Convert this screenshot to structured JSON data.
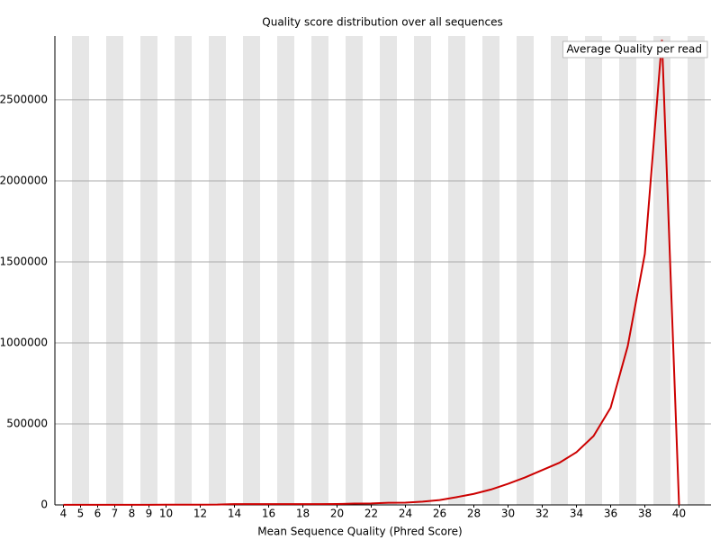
{
  "chart_data": {
    "type": "line",
    "title": "Quality score distribution over all sequences",
    "x_label": "Mean Sequence Quality (Phred Score)",
    "x": [
      4,
      5,
      6,
      7,
      8,
      9,
      10,
      11,
      12,
      13,
      14,
      15,
      16,
      17,
      18,
      19,
      20,
      21,
      22,
      23,
      24,
      25,
      26,
      27,
      28,
      29,
      30,
      31,
      32,
      33,
      34,
      35,
      36,
      37,
      38,
      39,
      40
    ],
    "series": [
      {
        "name": "Average Quality per read",
        "color": "#cc0000",
        "values": [
          500,
          600,
          700,
          800,
          900,
          1000,
          1200,
          1300,
          1500,
          1800,
          5000,
          5000,
          5000,
          5000,
          5000,
          5000,
          5500,
          8000,
          9000,
          13000,
          14000,
          20000,
          30000,
          48000,
          68000,
          95000,
          130000,
          170000,
          215000,
          260000,
          325000,
          425000,
          600000,
          980000,
          1550000,
          2870000,
          0
        ]
      }
    ],
    "xlim": [
      3.5,
      41.5
    ],
    "xticks": [
      4,
      5,
      6,
      7,
      8,
      9,
      10,
      12,
      14,
      16,
      18,
      20,
      22,
      24,
      26,
      28,
      30,
      32,
      34,
      36,
      38,
      40
    ],
    "ylim": [
      0,
      2894000
    ],
    "yticks": [
      0,
      500000,
      1000000,
      1500000,
      2000000,
      2500000
    ],
    "grid": true,
    "stripes": true,
    "legend": "top-right"
  }
}
